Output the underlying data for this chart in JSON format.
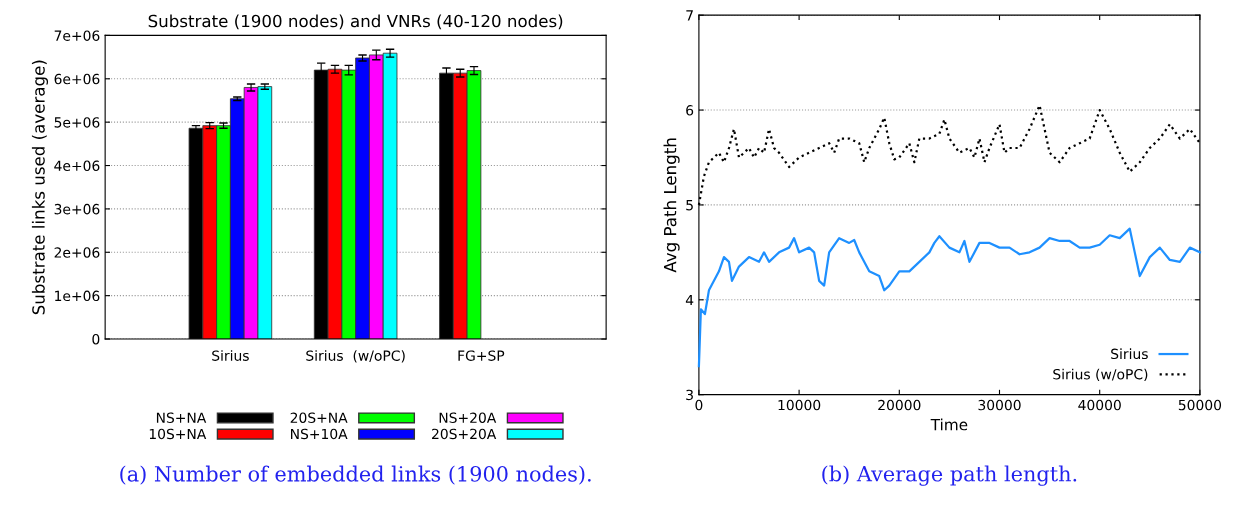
{
  "chart_data": [
    {
      "type": "bar",
      "title": "Substrate (1900 nodes) and VNRs (40-120 nodes)",
      "ylabel": "Substrate links used (average)",
      "categories": [
        "Sirius",
        "Sirius  (w/oPC)",
        "FG+SP"
      ],
      "series": [
        {
          "name": "NS+NA",
          "color": "#000000",
          "values": [
            4860000,
            6200000,
            6130000
          ],
          "errors": [
            60000,
            160000,
            120000
          ]
        },
        {
          "name": "10S+NA",
          "color": "#ff0000",
          "values": [
            4920000,
            6220000,
            6130000
          ],
          "errors": [
            70000,
            90000,
            90000
          ]
        },
        {
          "name": "20S+NA",
          "color": "#00ff00",
          "values": [
            4920000,
            6200000,
            6190000
          ],
          "errors": [
            60000,
            110000,
            90000
          ]
        },
        {
          "name": "NS+10A",
          "color": "#0000ff",
          "values": [
            5540000,
            6480000,
            null
          ],
          "errors": [
            40000,
            70000,
            null
          ]
        },
        {
          "name": "NS+20A",
          "color": "#ff00ff",
          "values": [
            5800000,
            6550000,
            null
          ],
          "errors": [
            80000,
            110000,
            null
          ]
        },
        {
          "name": "20S+20A",
          "color": "#00ffff",
          "values": [
            5820000,
            6590000,
            null
          ],
          "errors": [
            60000,
            90000,
            null
          ]
        }
      ],
      "ylim": [
        0,
        7000000
      ],
      "yticks": [
        {
          "value": 0,
          "label": "0"
        },
        {
          "value": 1000000,
          "label": "1e+06"
        },
        {
          "value": 2000000,
          "label": "2e+06"
        },
        {
          "value": 3000000,
          "label": "3e+06"
        },
        {
          "value": 4000000,
          "label": "4e+06"
        },
        {
          "value": 5000000,
          "label": "5e+06"
        },
        {
          "value": 6000000,
          "label": "6e+06"
        },
        {
          "value": 7000000,
          "label": "7e+06"
        }
      ],
      "grid": "y",
      "legend": "bottom",
      "annotations": [
        "(a) Number of embedded links (1900 nodes)."
      ]
    },
    {
      "type": "line",
      "xlabel": "Time",
      "ylabel": "Avg Path Length",
      "series": [
        {
          "name": "Sirius",
          "color": "#1e90ff",
          "line_style": "solid",
          "x": [
            0,
            200,
            600,
            1000,
            1500,
            2000,
            2500,
            3000,
            3300,
            4000,
            5000,
            6000,
            6500,
            7000,
            8000,
            9000,
            9500,
            10000,
            11000,
            11500,
            12000,
            12500,
            13000,
            14000,
            15000,
            15500,
            16000,
            17000,
            18000,
            18500,
            19000,
            20000,
            21000,
            22000,
            23000,
            23500,
            24000,
            25000,
            26000,
            26500,
            27000,
            28000,
            29000,
            30000,
            31000,
            32000,
            33000,
            34000,
            35000,
            36000,
            37000,
            38000,
            39000,
            40000,
            41000,
            42000,
            43000,
            43500,
            44000,
            45000,
            46000,
            47000,
            48000,
            49000,
            50000
          ],
          "values": [
            3.3,
            3.9,
            3.85,
            4.1,
            4.2,
            4.3,
            4.45,
            4.4,
            4.2,
            4.35,
            4.45,
            4.4,
            4.5,
            4.4,
            4.5,
            4.55,
            4.65,
            4.5,
            4.55,
            4.5,
            4.2,
            4.15,
            4.5,
            4.65,
            4.6,
            4.63,
            4.5,
            4.3,
            4.25,
            4.1,
            4.15,
            4.3,
            4.3,
            4.4,
            4.5,
            4.6,
            4.67,
            4.55,
            4.5,
            4.62,
            4.4,
            4.6,
            4.6,
            4.55,
            4.55,
            4.48,
            4.5,
            4.55,
            4.65,
            4.62,
            4.62,
            4.55,
            4.55,
            4.58,
            4.68,
            4.65,
            4.75,
            4.5,
            4.25,
            4.45,
            4.55,
            4.42,
            4.4,
            4.55,
            4.5
          ]
        },
        {
          "name": "Sirius (w/oPC)",
          "color": "#000000",
          "line_style": "dotted",
          "x": [
            0,
            500,
            1000,
            2000,
            2500,
            3000,
            3500,
            4000,
            5000,
            5500,
            6000,
            6500,
            7000,
            7500,
            8000,
            9000,
            10000,
            11000,
            12000,
            13000,
            13500,
            14000,
            15000,
            16000,
            16500,
            17000,
            18000,
            18500,
            19000,
            19500,
            20000,
            21000,
            21500,
            22000,
            23000,
            24000,
            24500,
            25000,
            26000,
            27000,
            27500,
            28000,
            28500,
            29000,
            30000,
            30500,
            31000,
            32000,
            33000,
            34000,
            35000,
            36000,
            37000,
            38000,
            39000,
            40000,
            41000,
            42000,
            43000,
            44000,
            45000,
            46000,
            47000,
            48000,
            49000,
            50000
          ],
          "values": [
            5.0,
            5.3,
            5.45,
            5.55,
            5.45,
            5.6,
            5.8,
            5.5,
            5.6,
            5.5,
            5.6,
            5.55,
            5.8,
            5.6,
            5.55,
            5.4,
            5.5,
            5.55,
            5.6,
            5.65,
            5.55,
            5.7,
            5.7,
            5.65,
            5.45,
            5.6,
            5.8,
            5.92,
            5.65,
            5.48,
            5.5,
            5.65,
            5.45,
            5.7,
            5.7,
            5.75,
            5.9,
            5.7,
            5.55,
            5.6,
            5.5,
            5.7,
            5.45,
            5.6,
            5.85,
            5.55,
            5.6,
            5.6,
            5.8,
            6.05,
            5.55,
            5.45,
            5.6,
            5.65,
            5.7,
            6.0,
            5.8,
            5.55,
            5.35,
            5.45,
            5.6,
            5.7,
            5.85,
            5.7,
            5.8,
            5.65
          ]
        }
      ],
      "xlim": [
        0,
        50000
      ],
      "xticks": [
        0,
        10000,
        20000,
        30000,
        40000,
        50000
      ],
      "ylim": [
        3,
        7
      ],
      "yticks": [
        3,
        4,
        5,
        6,
        7
      ],
      "grid": "y",
      "legend": "bottom right",
      "annotations": [
        "(b) Average path length."
      ]
    }
  ]
}
